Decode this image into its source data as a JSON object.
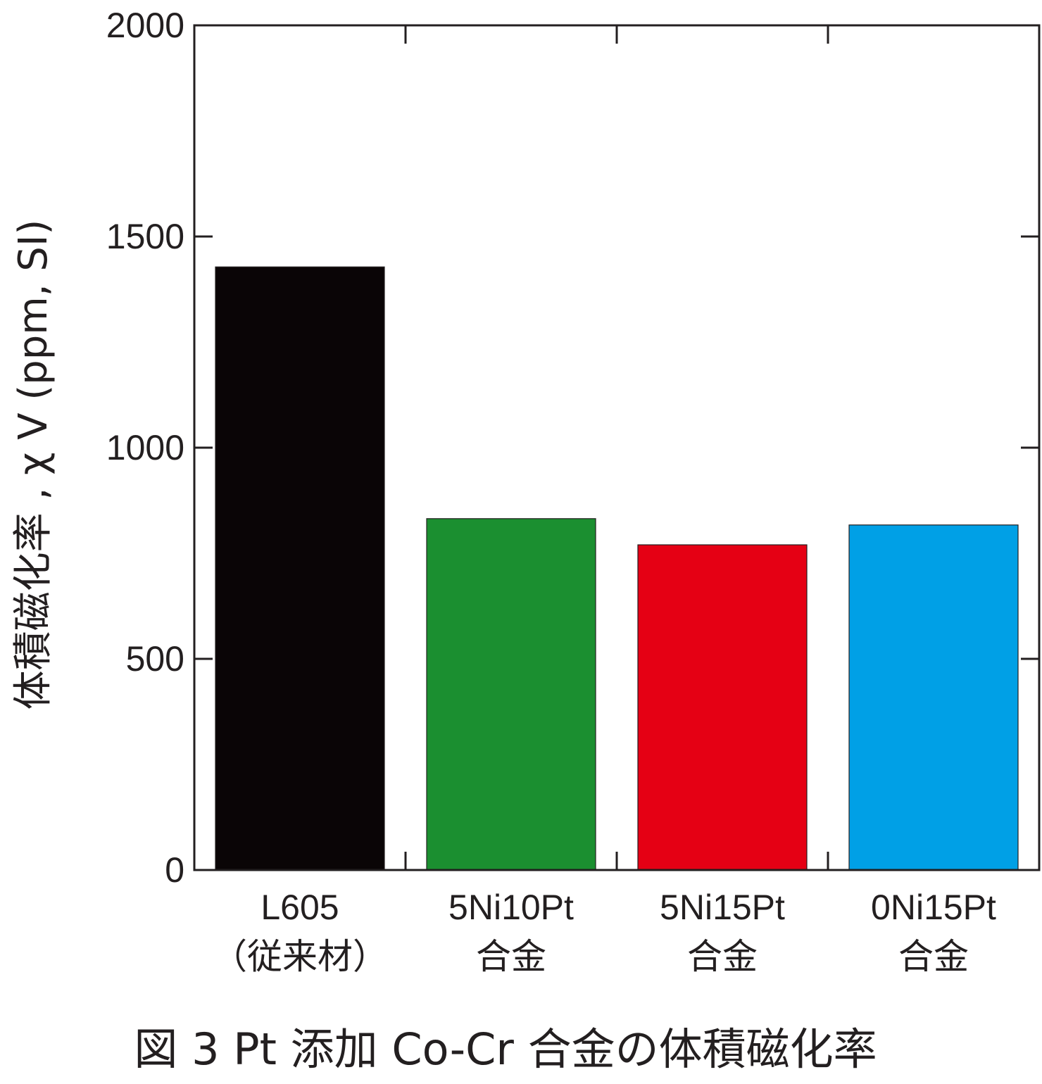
{
  "chart_data": {
    "type": "bar",
    "categories": [
      {
        "line1": "L605",
        "line2": "（従来材）"
      },
      {
        "line1": "5Ni10Pt",
        "line2": "合金"
      },
      {
        "line1": "5Ni15Pt",
        "line2": "合金"
      },
      {
        "line1": "0Ni15Pt",
        "line2": "合金"
      }
    ],
    "values": [
      1428,
      832,
      770,
      817
    ],
    "colors": [
      "#0a0506",
      "#1b8f30",
      "#e50014",
      "#00a0e6"
    ],
    "ylabel": "体積磁化率 , χ V (ppm, SI)",
    "ylim": [
      0,
      2000
    ],
    "yticks": [
      0,
      500,
      1000,
      1500,
      2000
    ],
    "title": "図 3 Pt 添加 Co-Cr 合金の体積磁化率",
    "grid": false
  }
}
